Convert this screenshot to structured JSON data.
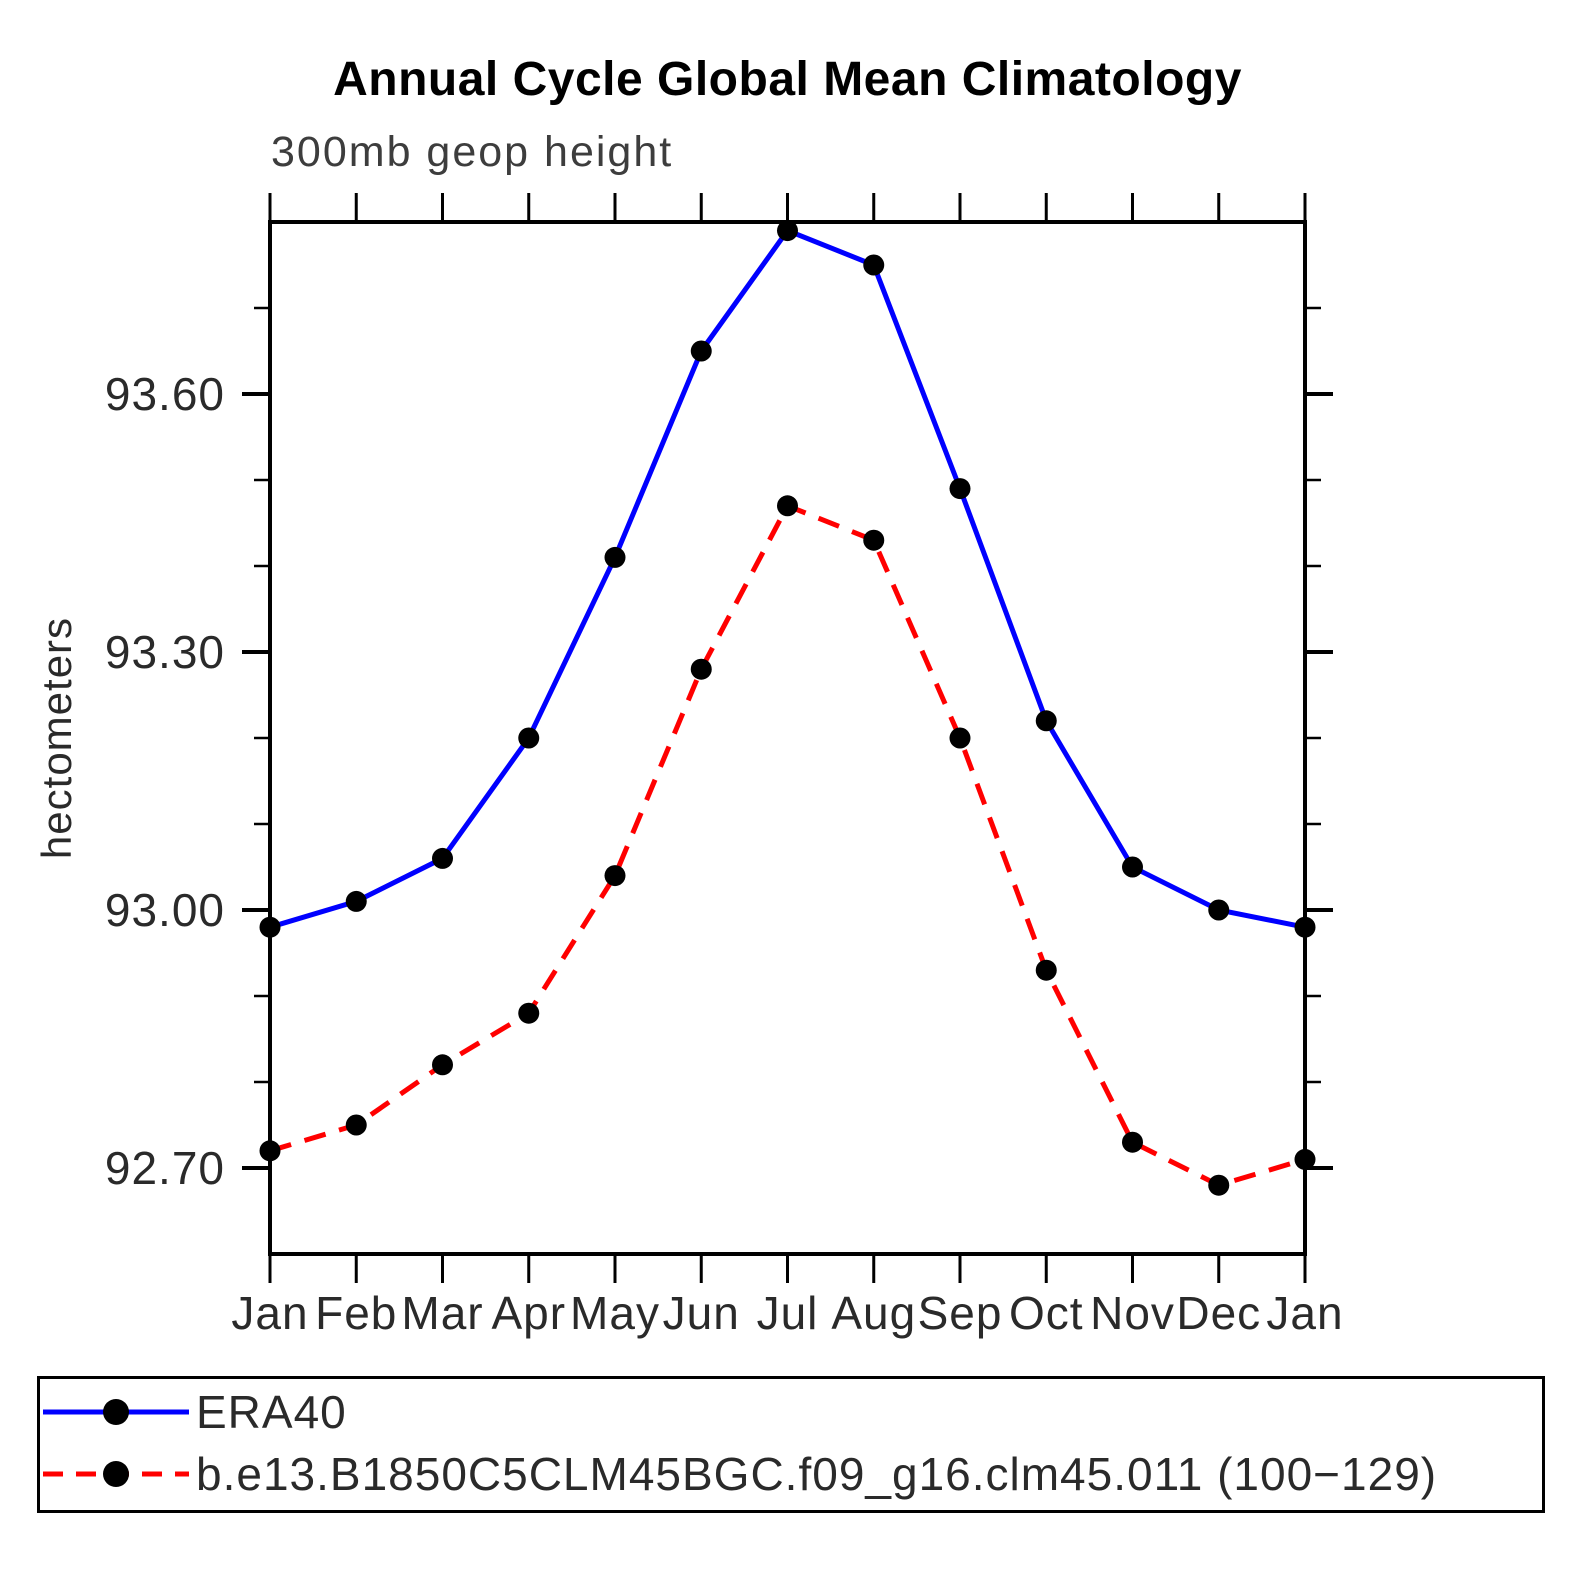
{
  "chart_data": {
    "type": "line",
    "title": "Annual Cycle Global Mean Climatology",
    "subtitle": "300mb geop height",
    "ylabel": "hectometers",
    "xlabel": "",
    "categories": [
      "Jan",
      "Feb",
      "Mar",
      "Apr",
      "May",
      "Jun",
      "Jul",
      "Aug",
      "Sep",
      "Oct",
      "Nov",
      "Dec",
      "Jan"
    ],
    "x_tick_labels": [
      "Jan",
      "Feb",
      "Mar",
      "Apr",
      "May",
      "Jun",
      "Jul",
      "Aug",
      "Sep",
      "Oct",
      "Nov",
      "Dec",
      "Jan"
    ],
    "ylim": [
      92.6,
      93.8
    ],
    "y_major_ticks": [
      92.7,
      93.0,
      93.3,
      93.6
    ],
    "y_tick_labels": [
      "92.70",
      "93.00",
      "93.30",
      "93.60"
    ],
    "y_minor_ticks": [
      92.8,
      92.9,
      93.1,
      93.2,
      93.4,
      93.5,
      93.7
    ],
    "grid": false,
    "legend_position": "bottom",
    "axis_color": "#000000",
    "marker_color": "#000000",
    "series": [
      {
        "name": "ERA40",
        "color": "#0000ff",
        "line_style": "solid",
        "marker": "filled-circle",
        "values": [
          92.98,
          93.01,
          93.06,
          93.2,
          93.41,
          93.65,
          93.79,
          93.75,
          93.49,
          93.22,
          93.05,
          93.0,
          92.98
        ]
      },
      {
        "name": "b.e13.B1850C5CLM45BGC.f09_g16.clm45.011 (100−129)",
        "color": "#ff0000",
        "line_style": "dashed",
        "marker": "filled-circle",
        "values": [
          92.72,
          92.75,
          92.82,
          92.88,
          93.04,
          93.28,
          93.47,
          93.43,
          93.2,
          92.93,
          92.73,
          92.68,
          92.71
        ]
      }
    ]
  }
}
